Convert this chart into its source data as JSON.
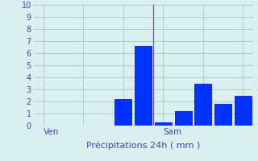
{
  "bar_values": [
    0,
    0,
    0,
    0,
    2.2,
    6.6,
    0.3,
    1.2,
    3.5,
    1.8,
    2.5
  ],
  "bar_color": "#0033ff",
  "bar_edge_color": "#0000cc",
  "ylim": [
    0,
    10
  ],
  "yticks": [
    0,
    1,
    2,
    3,
    4,
    5,
    6,
    7,
    8,
    9,
    10
  ],
  "xlabel": "Précipitations 24h ( mm )",
  "background_color": "#daf0f0",
  "plot_bg_color": "#daf0f0",
  "grid_color": "#aac8c8",
  "ven_bar_index": 0,
  "sam_bar_index": 6,
  "ven_label": "Ven",
  "sam_label": "Sam",
  "separator_color": "#666688",
  "label_color": "#4444aa",
  "xlabel_color": "#4444aa",
  "ytick_color": "#4444aa",
  "num_bars": 11,
  "bar_width": 0.85,
  "ytick_fontsize": 7,
  "xlabel_fontsize": 8
}
